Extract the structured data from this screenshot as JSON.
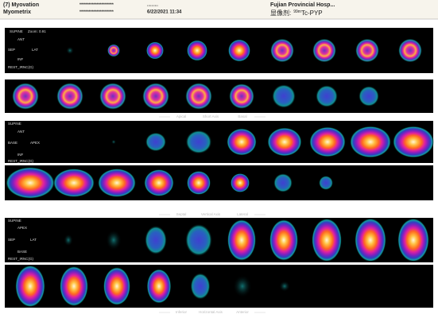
{
  "header": {
    "study": "(7) Myovation",
    "software": "Myometrix",
    "patient_id": "**********************",
    "patient_dob": "..........",
    "datetime": "6/22/2021 11:34",
    "hospital": "Fujian Provincial Hosp...",
    "tracer_label": "显像剂:",
    "tracer_isotope": "99m",
    "tracer_name": "Tc-PYP"
  },
  "panels": [
    {
      "labels": [
        "SUPINE",
        "Zoom: 0.91",
        "ANT",
        "SEP",
        "LAT",
        "INF",
        "REST_IRNC(G)"
      ],
      "caption": [
        "Apical",
        "Short Axis",
        "Basal"
      ]
    },
    {
      "labels": [
        "SUPINE",
        "ANT",
        "BASE",
        "APEX",
        "INF",
        "REST_IRNC(G)"
      ],
      "caption": [
        "Septal",
        "Vertical Axis",
        "Lateral"
      ]
    },
    {
      "labels": [
        "SUPINE",
        "APEX",
        "SEP",
        "LAT",
        "BASE",
        "REST_IRNC(G)"
      ],
      "caption": [
        "Inferior",
        "Horizontal Axis",
        "Anterior"
      ]
    }
  ]
}
